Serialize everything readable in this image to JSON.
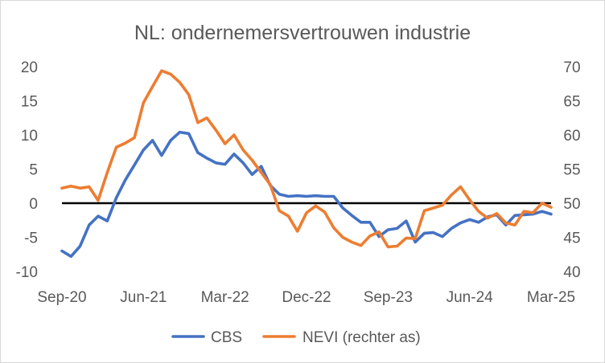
{
  "chart_data": {
    "type": "line",
    "title": "NL: ondernemersvertrouwen industrie",
    "x_tick_labels": [
      "Sep-20",
      "Jun-21",
      "Mar-22",
      "Dec-22",
      "Sep-23",
      "Jun-24",
      "Mar-25"
    ],
    "x_months": [
      "Sep-20",
      "Oct-20",
      "Nov-20",
      "Dec-20",
      "Jan-21",
      "Feb-21",
      "Mar-21",
      "Apr-21",
      "May-21",
      "Jun-21",
      "Jul-21",
      "Aug-21",
      "Sep-21",
      "Oct-21",
      "Nov-21",
      "Dec-21",
      "Jan-22",
      "Feb-22",
      "Mar-22",
      "Apr-22",
      "May-22",
      "Jun-22",
      "Jul-22",
      "Aug-22",
      "Sep-22",
      "Oct-22",
      "Nov-22",
      "Dec-22",
      "Jan-23",
      "Feb-23",
      "Mar-23",
      "Apr-23",
      "May-23",
      "Jun-23",
      "Jul-23",
      "Aug-23",
      "Sep-23",
      "Oct-23",
      "Nov-23",
      "Dec-23",
      "Jan-24",
      "Feb-24",
      "Mar-24",
      "Apr-24",
      "May-24",
      "Jun-24",
      "Jul-24",
      "Aug-24",
      "Sep-24",
      "Oct-24",
      "Nov-24",
      "Dec-24",
      "Jan-25",
      "Feb-25",
      "Mar-25"
    ],
    "y_left": {
      "min": -10,
      "max": 20,
      "ticks": [
        -10,
        -5,
        0,
        5,
        10,
        15,
        20
      ]
    },
    "y_right": {
      "min": 40,
      "max": 70,
      "ticks": [
        40,
        45,
        50,
        55,
        60,
        65,
        70
      ]
    },
    "zero_line": 0,
    "series": [
      {
        "name": "CBS",
        "axis": "left",
        "color": "#4472C4",
        "values": [
          -7.0,
          -7.8,
          -6.3,
          -3.2,
          -1.9,
          -2.6,
          0.8,
          3.4,
          5.6,
          7.8,
          9.2,
          7.0,
          9.2,
          10.4,
          10.2,
          7.4,
          6.6,
          5.9,
          5.7,
          7.2,
          5.9,
          4.2,
          5.4,
          2.6,
          1.3,
          1.0,
          1.1,
          1.0,
          1.1,
          1.0,
          1.0,
          -0.7,
          -1.8,
          -2.8,
          -2.8,
          -4.9,
          -3.9,
          -3.7,
          -2.6,
          -5.7,
          -4.4,
          -4.3,
          -4.9,
          -3.7,
          -2.9,
          -2.4,
          -2.8,
          -2.0,
          -1.7,
          -3.2,
          -1.8,
          -1.7,
          -1.6,
          -1.2,
          -1.6
        ]
      },
      {
        "name": "NEVI (rechter as)",
        "axis": "right",
        "color": "#ED7D31",
        "values": [
          52.2,
          52.5,
          52.2,
          52.4,
          50.4,
          54.5,
          58.2,
          58.8,
          59.6,
          64.7,
          67.1,
          69.4,
          68.9,
          67.7,
          65.9,
          61.8,
          62.5,
          60.7,
          58.7,
          60.0,
          57.8,
          56.3,
          54.5,
          52.7,
          48.9,
          48.1,
          45.9,
          48.6,
          49.6,
          48.7,
          46.4,
          45.0,
          44.3,
          43.8,
          45.2,
          45.8,
          43.6,
          43.7,
          44.9,
          44.8,
          48.9,
          49.3,
          49.7,
          51.2,
          52.4,
          50.5,
          48.8,
          47.8,
          48.5,
          47.1,
          46.8,
          48.8,
          48.6,
          50.0,
          49.4
        ]
      }
    ],
    "legend": {
      "position": "bottom",
      "entries": [
        "CBS",
        "NEVI (rechter as)"
      ]
    }
  }
}
